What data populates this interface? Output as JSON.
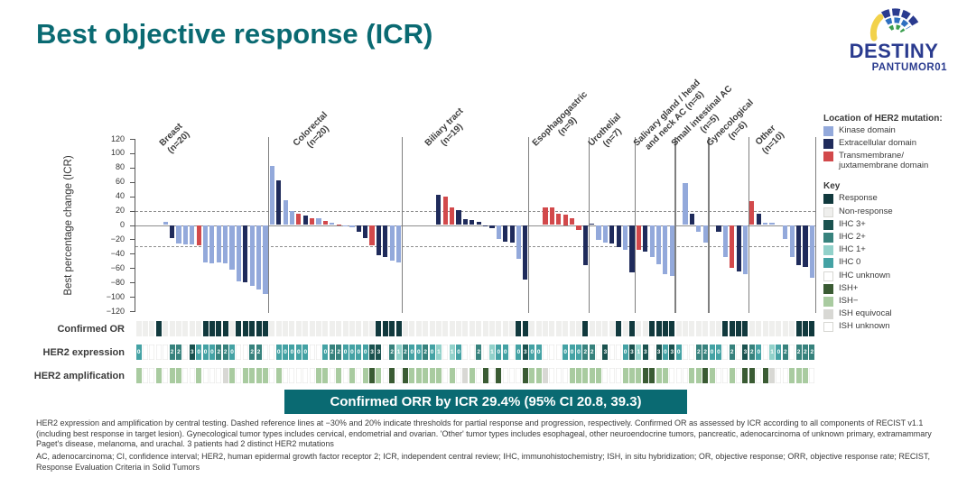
{
  "title": "Best objective response (ICR)",
  "logo": {
    "line1": "DESTINY",
    "line2": "PANTUMOR01"
  },
  "banner": "Confirmed ORR by ICR 29.4% (95% CI 20.8, 39.3)",
  "colors": {
    "accent_teal": "#0A6A72",
    "logo_navy": "#2A3B8F",
    "logo_yellow": "#F2D24B",
    "logo_green": "#3A9E4E",
    "logo_blue": "#2E6FC0",
    "mutation": {
      "k": "#93A9DB",
      "e": "#1F2B5B",
      "t": "#D2494B"
    },
    "response": "#11393D",
    "non_response": "#EFEFED",
    "ihc": {
      "0": "#44A2A4",
      "1": "#92D1CA",
      "2": "#37827D",
      "3": "#1A524F"
    },
    "ish": {
      "pos": "#3A5B33",
      "neg": "#A9CBA0",
      "eq": "#D8D8D4",
      "unknown": "#FFFFFF"
    },
    "unknown_cell": "#FFFFFF",
    "gridline": "#8C8C8C",
    "divider": "#7F7F7F"
  },
  "legend": {
    "mutation_title": "Location of HER2 mutation:",
    "mutation_items": [
      {
        "label": "Kinase domain",
        "color": "#93A9DB"
      },
      {
        "label": "Extracellular domain",
        "color": "#1F2B5B"
      },
      {
        "label": "Transmembrane/\njuxtamembrane domain",
        "color": "#D2494B"
      }
    ],
    "key_title": "Key",
    "key_items": [
      {
        "label": "Response",
        "color": "#11393D"
      },
      {
        "label": "Non-response",
        "color": "#EFEFED"
      },
      {
        "label": "IHC 3+",
        "color": "#1A524F"
      },
      {
        "label": "IHC 2+",
        "color": "#37827D"
      },
      {
        "label": "IHC 1+",
        "color": "#92D1CA"
      },
      {
        "label": "IHC 0",
        "color": "#44A2A4"
      },
      {
        "label": "IHC unknown",
        "color": "#FFFFFF"
      },
      {
        "label": "ISH+",
        "color": "#3A5B33"
      },
      {
        "label": "ISH−",
        "color": "#A9CBA0"
      },
      {
        "label": "ISH equivocal",
        "color": "#D8D8D4"
      },
      {
        "label": "ISH unknown",
        "color": "#FFFFFF"
      }
    ]
  },
  "rows": {
    "confirmed_or_label": "Confirmed OR",
    "her2_expression_label": "HER2 expression",
    "her2_amplification_label": "HER2 amplification"
  },
  "chart_data": {
    "type": "bar",
    "title": "Best objective response (ICR) waterfall by tumor type",
    "ylabel": "Best percentage change (ICR)",
    "ylim": [
      -120,
      120
    ],
    "yticks": [
      120,
      100,
      80,
      60,
      40,
      20,
      0,
      -20,
      -40,
      -60,
      -80,
      -100,
      -120
    ],
    "reference_lines": [
      20,
      -30
    ],
    "grid": "reference-lines-only",
    "legend_position": "right",
    "groups": [
      {
        "label_lines": [
          "Breast",
          "(n=20)"
        ],
        "n": 20,
        "bars": [
          null,
          null,
          null,
          null,
          {
            "v": 5,
            "m": "k"
          },
          {
            "v": -18,
            "m": "e"
          },
          {
            "v": -26,
            "m": "k"
          },
          {
            "v": -27,
            "m": "k"
          },
          {
            "v": -27,
            "m": "k"
          },
          {
            "v": -28,
            "m": "t"
          },
          {
            "v": -52,
            "m": "k"
          },
          {
            "v": -54,
            "m": "k"
          },
          {
            "v": -52,
            "m": "k"
          },
          {
            "v": -54,
            "m": "k"
          },
          {
            "v": -62,
            "m": "k"
          },
          {
            "v": -78,
            "m": "k"
          },
          {
            "v": -80,
            "m": "e"
          },
          {
            "v": -85,
            "m": "k"
          },
          {
            "v": -90,
            "m": "k"
          },
          {
            "v": -96,
            "m": "k"
          }
        ],
        "confirmed_or": [
          0,
          0,
          0,
          1,
          0,
          0,
          0,
          0,
          0,
          0,
          1,
          1,
          1,
          1,
          0,
          1,
          1,
          1,
          1,
          1
        ],
        "her2_expression": [
          0,
          null,
          null,
          null,
          null,
          2,
          2,
          null,
          3,
          0,
          0,
          0,
          2,
          2,
          0,
          null,
          null,
          2,
          2,
          null
        ],
        "her2_amplification": [
          "neg",
          null,
          null,
          "neg",
          null,
          "neg",
          "neg",
          null,
          null,
          "neg",
          null,
          null,
          null,
          "eq",
          "neg",
          null,
          "neg",
          "neg",
          "neg",
          "neg"
        ]
      },
      {
        "label_lines": [
          "Colorectal",
          "(n=20)"
        ],
        "n": 20,
        "bars": [
          {
            "v": 82,
            "m": "k"
          },
          {
            "v": 62,
            "m": "e"
          },
          {
            "v": 35,
            "m": "k"
          },
          {
            "v": 20,
            "m": "k"
          },
          {
            "v": 16,
            "m": "t"
          },
          {
            "v": 13,
            "m": "e"
          },
          {
            "v": 10,
            "m": "t"
          },
          {
            "v": 9,
            "m": "k"
          },
          {
            "v": 6,
            "m": "t"
          },
          {
            "v": 3,
            "m": "k"
          },
          {
            "v": 1,
            "m": "t"
          },
          {
            "v": -2,
            "m": "k"
          },
          {
            "v": -3,
            "m": "k"
          },
          {
            "v": -9,
            "m": "e"
          },
          {
            "v": -18,
            "m": "e"
          },
          {
            "v": -28,
            "m": "t"
          },
          {
            "v": -42,
            "m": "e"
          },
          {
            "v": -44,
            "m": "e"
          },
          {
            "v": -50,
            "m": "k"
          },
          {
            "v": -52,
            "m": "k"
          }
        ],
        "confirmed_or": [
          0,
          0,
          0,
          0,
          0,
          0,
          0,
          0,
          0,
          0,
          0,
          0,
          0,
          0,
          0,
          0,
          1,
          1,
          1,
          1
        ],
        "her2_expression": [
          null,
          0,
          0,
          0,
          0,
          0,
          null,
          null,
          0,
          2,
          2,
          0,
          0,
          0,
          0,
          3,
          3,
          null,
          2,
          1
        ],
        "her2_amplification": [
          null,
          "neg",
          null,
          null,
          null,
          null,
          null,
          "neg",
          "neg",
          null,
          "neg",
          null,
          "neg",
          null,
          "neg",
          "pos",
          "neg",
          null,
          "pos",
          null
        ]
      },
      {
        "label_lines": [
          "Biliary tract",
          "(n=19)"
        ],
        "n": 19,
        "bars": [
          null,
          null,
          null,
          null,
          null,
          {
            "v": 42,
            "m": "e"
          },
          {
            "v": 40,
            "m": "t"
          },
          {
            "v": 25,
            "m": "t"
          },
          {
            "v": 21,
            "m": "e"
          },
          {
            "v": 8,
            "m": "e"
          },
          {
            "v": 7,
            "m": "e"
          },
          {
            "v": 5,
            "m": "e"
          },
          {
            "v": -2,
            "m": "e"
          },
          {
            "v": -5,
            "m": "e"
          },
          {
            "v": -20,
            "m": "k"
          },
          {
            "v": -23,
            "m": "e"
          },
          {
            "v": -25,
            "m": "e"
          },
          {
            "v": -47,
            "m": "k"
          },
          {
            "v": -76,
            "m": "e"
          }
        ],
        "confirmed_or": [
          0,
          0,
          0,
          0,
          0,
          0,
          0,
          0,
          0,
          0,
          0,
          0,
          0,
          0,
          0,
          0,
          0,
          1,
          1
        ],
        "her2_expression": [
          2,
          0,
          0,
          2,
          0,
          1,
          null,
          1,
          0,
          null,
          null,
          2,
          null,
          1,
          0,
          0,
          null,
          0,
          3
        ],
        "her2_amplification": [
          "pos",
          "neg",
          "neg",
          "neg",
          "neg",
          "neg",
          null,
          "neg",
          null,
          "eq",
          "neg",
          null,
          "pos",
          null,
          "pos",
          null,
          null,
          null,
          "pos"
        ]
      },
      {
        "label_lines": [
          "Esophagogastric",
          "(n=9)"
        ],
        "n": 9,
        "bars": [
          null,
          null,
          {
            "v": 25,
            "m": "t"
          },
          {
            "v": 24,
            "m": "t"
          },
          {
            "v": 16,
            "m": "t"
          },
          {
            "v": 15,
            "m": "t"
          },
          {
            "v": 10,
            "m": "t"
          },
          {
            "v": -7,
            "m": "t"
          },
          {
            "v": -56,
            "m": "e"
          }
        ],
        "confirmed_or": [
          0,
          0,
          0,
          0,
          0,
          0,
          0,
          0,
          1
        ],
        "her2_expression": [
          0,
          0,
          null,
          null,
          null,
          0,
          0,
          0,
          2
        ],
        "her2_amplification": [
          "neg",
          "neg",
          "eq",
          null,
          null,
          null,
          "neg",
          "neg",
          "neg"
        ]
      },
      {
        "label_lines": [
          "Urothelial",
          "(n=7)"
        ],
        "n": 7,
        "bars": [
          {
            "v": 2,
            "m": "e"
          },
          {
            "v": -21,
            "m": "k"
          },
          {
            "v": -24,
            "m": "k"
          },
          {
            "v": -26,
            "m": "e"
          },
          {
            "v": -31,
            "m": "e"
          },
          {
            "v": -35,
            "m": "k"
          },
          {
            "v": -66,
            "m": "e"
          }
        ],
        "confirmed_or": [
          0,
          0,
          0,
          0,
          1,
          0,
          1
        ],
        "her2_expression": [
          2,
          null,
          3,
          null,
          null,
          0,
          3
        ],
        "her2_amplification": [
          "neg",
          "neg",
          null,
          null,
          null,
          "neg",
          "neg"
        ]
      },
      {
        "label_lines": [
          "Salivary gland / head",
          "and neck AC (n=6)"
        ],
        "n": 6,
        "bars": [
          {
            "v": -35,
            "m": "t"
          },
          {
            "v": -37,
            "m": "e"
          },
          {
            "v": -44,
            "m": "k"
          },
          {
            "v": -55,
            "m": "k"
          },
          {
            "v": -68,
            "m": "k"
          },
          {
            "v": -71,
            "m": "k"
          }
        ],
        "confirmed_or": [
          0,
          0,
          1,
          1,
          1,
          1
        ],
        "her2_expression": [
          1,
          3,
          null,
          3,
          0,
          3
        ],
        "her2_amplification": [
          "neg",
          "pos",
          "pos",
          "neg",
          "neg",
          null
        ]
      },
      {
        "label_lines": [
          "Small intestinal AC",
          "(n=5)"
        ],
        "n": 5,
        "bars": [
          null,
          {
            "v": 59,
            "m": "k"
          },
          {
            "v": 16,
            "m": "e"
          },
          {
            "v": -10,
            "m": "k"
          },
          {
            "v": -25,
            "m": "k"
          }
        ],
        "confirmed_or": [
          0,
          0,
          0,
          0,
          0
        ],
        "her2_expression": [
          0,
          null,
          null,
          2,
          2
        ],
        "her2_amplification": [
          null,
          null,
          "neg",
          "neg",
          "pos"
        ]
      },
      {
        "label_lines": [
          "Gynecological",
          "(n=6)"
        ],
        "n": 6,
        "bars": [
          null,
          {
            "v": -10,
            "m": "e"
          },
          {
            "v": -44,
            "m": "k"
          },
          {
            "v": -60,
            "m": "t"
          },
          {
            "v": -65,
            "m": "e"
          },
          {
            "v": -69,
            "m": "k"
          }
        ],
        "confirmed_or": [
          0,
          0,
          1,
          1,
          1,
          1
        ],
        "her2_expression": [
          0,
          0,
          null,
          2,
          null,
          3
        ],
        "her2_amplification": [
          "neg",
          null,
          null,
          "neg",
          null,
          "pos"
        ]
      },
      {
        "label_lines": [
          "Other",
          "(n=10)"
        ],
        "n": 10,
        "bars": [
          {
            "v": 33,
            "m": "t"
          },
          {
            "v": 16,
            "m": "e"
          },
          {
            "v": 3,
            "m": "k"
          },
          {
            "v": 3,
            "m": "k"
          },
          null,
          {
            "v": -19,
            "m": "k"
          },
          {
            "v": -44,
            "m": "k"
          },
          {
            "v": -56,
            "m": "e"
          },
          {
            "v": -58,
            "m": "e"
          },
          {
            "v": -74,
            "m": "k"
          }
        ],
        "confirmed_or": [
          0,
          0,
          0,
          0,
          0,
          0,
          0,
          1,
          1,
          1
        ],
        "her2_expression": [
          2,
          0,
          null,
          1,
          0,
          2,
          null,
          2,
          2,
          2
        ],
        "her2_amplification": [
          "pos",
          null,
          "pos",
          "eq",
          null,
          null,
          "neg",
          "neg",
          "neg",
          null
        ]
      }
    ]
  },
  "footnotes": [
    "HER2 expression and amplification by central testing. Dashed reference lines at −30% and 20% indicate thresholds for partial response and progression, respectively. Confirmed OR as assessed by ICR according to all components of RECIST v1.1 (including best response in target lesion). Gynecological tumor types includes cervical, endometrial and ovarian. 'Other' tumor types includes esophageal, other neuroendocrine tumors, pancreatic, adenocarcinoma of unknown primary, extramammary Paget's disease, melanoma, and urachal. 3 patients had 2 distinct HER2 mutations",
    "AC, adenocarcinoma; CI, confidence interval; HER2, human epidermal growth factor receptor 2; ICR, independent central review; IHC, immunohistochemistry; ISH, in situ hybridization; OR, objective response; ORR, objective response rate; RECIST, Response Evaluation Criteria in Solid Tumors"
  ]
}
